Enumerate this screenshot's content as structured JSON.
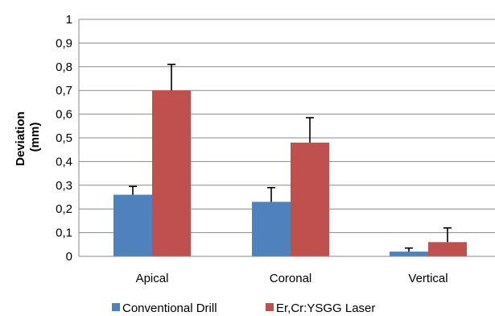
{
  "chart_data": {
    "type": "bar",
    "title": "",
    "xlabel": "",
    "ylabel_lines": [
      "Deviation",
      "(mm)"
    ],
    "categories": [
      "Apical",
      "Coronal",
      "Vertical"
    ],
    "ylim": [
      0,
      1
    ],
    "yticks": [
      "0",
      "0,1",
      "0,2",
      "0,3",
      "0,4",
      "0,5",
      "0,6",
      "0,7",
      "0,8",
      "0,9",
      "1"
    ],
    "grid": true,
    "legend_position": "bottom",
    "series": [
      {
        "name": "Conventional Drill",
        "color": "#4f81bd",
        "values": [
          0.26,
          0.23,
          0.02
        ],
        "errors": [
          0.035,
          0.06,
          0.015
        ]
      },
      {
        "name": "Er,Cr:YSGG Laser",
        "color": "#c0504d",
        "values": [
          0.7,
          0.48,
          0.06
        ],
        "errors": [
          0.11,
          0.105,
          0.06
        ]
      }
    ]
  }
}
